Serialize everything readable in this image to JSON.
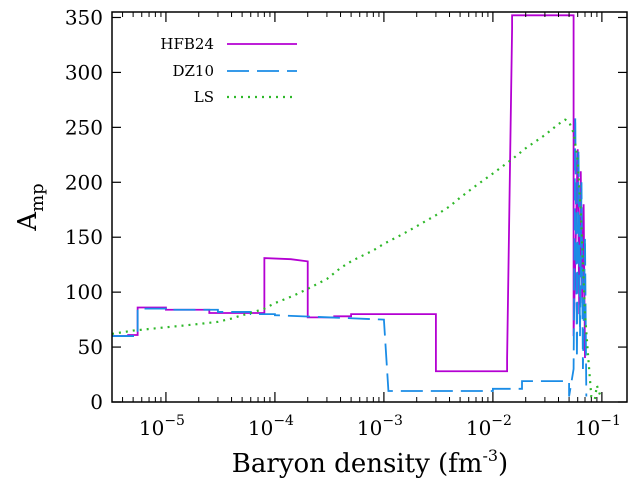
{
  "chart_data": {
    "type": "line",
    "xscale": "log",
    "xlim": [
      3.2e-06,
      0.17
    ],
    "ylim": [
      0,
      355
    ],
    "xlabel_main": "Baryon density (fm",
    "xlabel_sup": "-3",
    "xlabel_close": ")",
    "ylabel_main": "A",
    "ylabel_sub": "mp",
    "yticks": [
      0,
      50,
      100,
      150,
      200,
      250,
      300,
      350
    ],
    "ytick_labels": [
      "0",
      "50",
      "100",
      "150",
      "200",
      "250",
      "300",
      "350"
    ],
    "xticks": [
      1e-05,
      0.0001,
      0.001,
      0.01,
      0.1
    ],
    "xtick_labels": [
      {
        "base": "10",
        "exp": "−5"
      },
      {
        "base": "10",
        "exp": "−4"
      },
      {
        "base": "10",
        "exp": "−3"
      },
      {
        "base": "10",
        "exp": "−2"
      },
      {
        "base": "10",
        "exp": "−1"
      }
    ],
    "legend_position": "top-left",
    "series": [
      {
        "name": "HFB24",
        "color": "#b400d2",
        "style": "solid",
        "x": [
          3.2e-06,
          4.5e-06,
          4.5e-06,
          5.5e-06,
          5.5e-06,
          1e-05,
          1e-05,
          2.5e-05,
          2.5e-05,
          8e-05,
          8e-05,
          0.00014,
          0.00014,
          0.0002,
          0.0002,
          0.00035,
          0.00035,
          0.0005,
          0.0005,
          0.003,
          0.003,
          0.0135,
          0.0135,
          0.015,
          0.015,
          0.055,
          0.055,
          0.06,
          0.062,
          0.064,
          0.066,
          0.068,
          0.07
        ],
        "y": [
          60,
          60,
          61,
          61,
          86,
          86,
          84,
          84,
          81,
          81,
          131,
          130,
          130,
          128,
          77,
          77,
          78,
          78,
          80,
          80,
          28,
          28,
          40,
          340,
          352,
          352,
          60,
          230,
          80,
          210,
          90,
          180,
          40
        ]
      },
      {
        "name": "DZ10",
        "color": "#1a8ce6",
        "style": "dashed",
        "x": [
          3.2e-06,
          5.5e-06,
          5.5e-06,
          1e-05,
          1e-05,
          3e-05,
          3e-05,
          6e-05,
          6e-05,
          0.0001,
          0.0001,
          0.001,
          0.001,
          0.0011,
          0.0011,
          0.01,
          0.01,
          0.0185,
          0.0185,
          0.05,
          0.05,
          0.055,
          0.057,
          0.059,
          0.061,
          0.063,
          0.065,
          0.067,
          0.07,
          0.072
        ],
        "y": [
          60,
          60,
          85,
          85,
          84,
          84,
          82,
          82,
          80,
          80,
          79,
          75,
          75,
          10,
          10,
          10,
          12,
          12,
          19,
          19,
          5,
          30,
          260,
          40,
          230,
          60,
          200,
          30,
          150,
          5
        ]
      },
      {
        "name": "LS",
        "color": "#2fb82a",
        "style": "dotted",
        "x": [
          3.2e-06,
          5e-06,
          1e-05,
          2e-05,
          3e-05,
          4e-05,
          5e-05,
          6e-05,
          8e-05,
          0.0001,
          0.00015,
          0.0002,
          0.0003,
          0.0004,
          0.0005,
          0.0006,
          0.0008,
          0.001,
          0.0015,
          0.002,
          0.003,
          0.004,
          0.005,
          0.007,
          0.01,
          0.015,
          0.02,
          0.03,
          0.04,
          0.046,
          0.05,
          0.055,
          0.06,
          0.065,
          0.07,
          0.075,
          0.08,
          0.086,
          0.09,
          0.095,
          0.1
        ],
        "y": [
          62,
          65,
          68,
          71,
          73,
          76,
          79,
          81,
          85,
          90,
          97,
          103,
          112,
          122,
          128,
          132,
          138,
          144,
          153,
          160,
          170,
          178,
          186,
          197,
          208,
          221,
          231,
          243,
          253,
          257,
          255,
          245,
          220,
          160,
          80,
          40,
          5,
          2,
          15,
          8,
          3
        ]
      }
    ]
  }
}
